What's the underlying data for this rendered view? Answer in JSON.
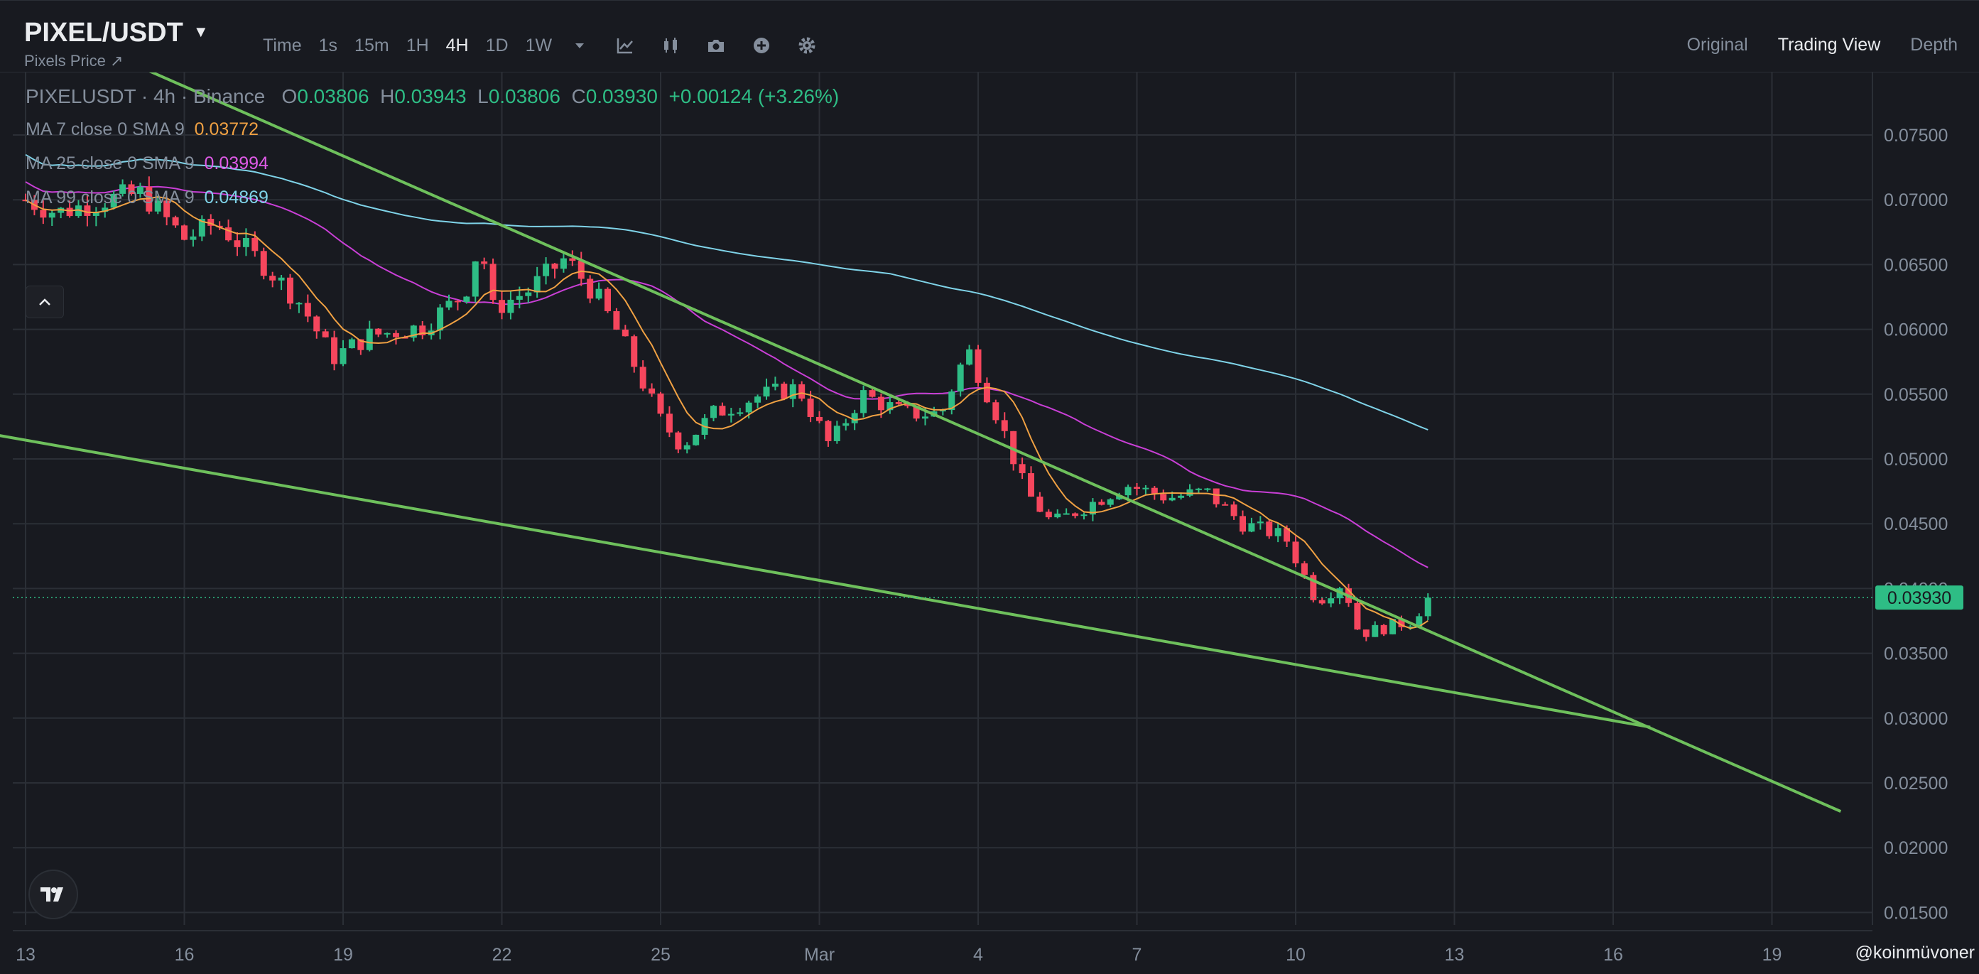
{
  "header": {
    "pair": "PIXEL/USDT",
    "subtitle": "Pixels Price ↗",
    "intervals": [
      "Time",
      "1s",
      "15m",
      "1H",
      "4H",
      "1D",
      "1W"
    ],
    "active_interval": "4H",
    "tools": [
      "dropdown-caret-icon",
      "indicator-icon",
      "candle-type-icon",
      "camera-icon",
      "add-icon",
      "settings-icon"
    ],
    "views": [
      "Original",
      "Trading View",
      "Depth"
    ],
    "active_view": "Trading View"
  },
  "legend": {
    "symbol_line": "PIXELUSDT · 4h · Binance",
    "ohlc": {
      "o": "0.03806",
      "h": "0.03943",
      "l": "0.03806",
      "c": "0.03930",
      "change": "+0.00124 (+3.26%)"
    },
    "ma7": {
      "label": "MA 7 close 0 SMA 9",
      "value": "0.03772",
      "color": "#f0a143"
    },
    "ma25": {
      "label": "MA 25 close 0 SMA 9",
      "value": "0.03994",
      "color": "#c93fd6"
    },
    "ma99": {
      "label": "MA 99 close 0 SMA 9",
      "value": "0.04869",
      "color": "#7fd3e8"
    }
  },
  "watermark": "@koinmüvoner",
  "colors": {
    "up": "#2ebd85",
    "down": "#f6465d",
    "trend": "#6ec05c",
    "bg": "#181a20",
    "grid": "#2b2f36"
  },
  "chart_data": {
    "type": "candlestick",
    "title": "",
    "x_ticks": [
      "13",
      "16",
      "19",
      "22",
      "25",
      "Mar",
      "4",
      "7",
      "10",
      "13",
      "16",
      "19"
    ],
    "y_ticks": [
      "0.07500",
      "0.07000",
      "0.06500",
      "0.06000",
      "0.05500",
      "0.05000",
      "0.04500",
      "0.04000",
      "0.03500",
      "0.03000",
      "0.02500",
      "0.02000",
      "0.01500"
    ],
    "ylim": [
      0.0142,
      0.0793
    ],
    "current_price": "0.03930",
    "anchors": [
      {
        "day": 0,
        "price": 0.07
      },
      {
        "day": 0.6,
        "price": 0.069
      },
      {
        "day": 1.5,
        "price": 0.07
      },
      {
        "day": 2.2,
        "price": 0.0705
      },
      {
        "day": 3.0,
        "price": 0.067
      },
      {
        "day": 3.6,
        "price": 0.0682
      },
      {
        "day": 4.5,
        "price": 0.065
      },
      {
        "day": 5.2,
        "price": 0.062
      },
      {
        "day": 5.8,
        "price": 0.0578
      },
      {
        "day": 6.5,
        "price": 0.0595
      },
      {
        "day": 7.5,
        "price": 0.0602
      },
      {
        "day": 8.3,
        "price": 0.0628
      },
      {
        "day": 8.6,
        "price": 0.067
      },
      {
        "day": 8.8,
        "price": 0.0615
      },
      {
        "day": 9.5,
        "price": 0.063
      },
      {
        "day": 10.2,
        "price": 0.0655
      },
      {
        "day": 10.8,
        "price": 0.0625
      },
      {
        "day": 11.3,
        "price": 0.059
      },
      {
        "day": 12.0,
        "price": 0.053
      },
      {
        "day": 12.4,
        "price": 0.051
      },
      {
        "day": 13.0,
        "price": 0.0535
      },
      {
        "day": 13.8,
        "price": 0.0548
      },
      {
        "day": 14.6,
        "price": 0.0555
      },
      {
        "day": 15.2,
        "price": 0.051
      },
      {
        "day": 15.8,
        "price": 0.055
      },
      {
        "day": 16.6,
        "price": 0.0535
      },
      {
        "day": 17.3,
        "price": 0.0535
      },
      {
        "day": 17.8,
        "price": 0.0585
      },
      {
        "day": 18.4,
        "price": 0.053
      },
      {
        "day": 18.9,
        "price": 0.0475
      },
      {
        "day": 19.4,
        "price": 0.045
      },
      {
        "day": 20.1,
        "price": 0.0465
      },
      {
        "day": 20.8,
        "price": 0.048
      },
      {
        "day": 21.6,
        "price": 0.047
      },
      {
        "day": 22.3,
        "price": 0.0475
      },
      {
        "day": 23.0,
        "price": 0.045
      },
      {
        "day": 23.8,
        "price": 0.044
      },
      {
        "day": 24.4,
        "price": 0.039
      },
      {
        "day": 24.9,
        "price": 0.0405
      },
      {
        "day": 25.2,
        "price": 0.0365
      },
      {
        "day": 25.7,
        "price": 0.037
      },
      {
        "day": 26.2,
        "price": 0.0375
      },
      {
        "day": 26.5,
        "price": 0.0393
      }
    ],
    "trendlines": [
      {
        "from": {
          "day": 2.3,
          "price": 0.08
        },
        "to": {
          "day": 34.3,
          "price": 0.0228
        }
      },
      {
        "from": {
          "day": -0.9,
          "price": 0.0521
        },
        "to": {
          "day": 30.7,
          "price": 0.0293
        }
      }
    ]
  }
}
